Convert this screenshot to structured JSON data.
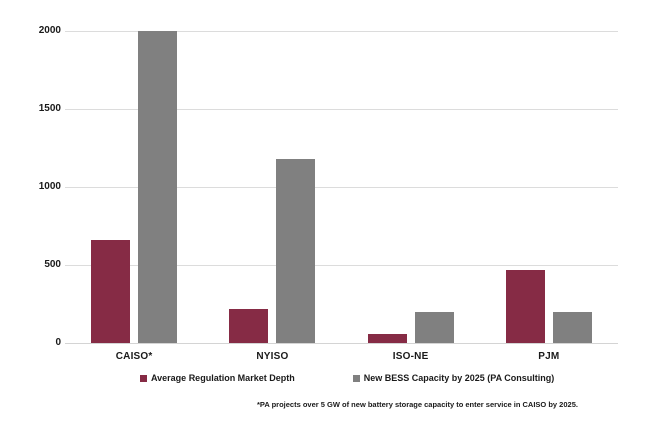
{
  "chart_data": {
    "type": "bar",
    "categories": [
      "CAISO*",
      "NYISO",
      "ISO-NE",
      "PJM"
    ],
    "series": [
      {
        "name": "Average Regulation Market Depth",
        "color": "#862B45",
        "values": [
          660,
          220,
          60,
          470
        ]
      },
      {
        "name": "New BESS Capacity by 2025 (PA Consulting)",
        "color": "#808080",
        "values": [
          2000,
          1180,
          200,
          200
        ]
      }
    ],
    "title": "",
    "xlabel": "",
    "ylabel": "",
    "ylim": [
      0,
      2000
    ],
    "yticks": [
      0,
      500,
      1000,
      1500,
      2000
    ],
    "grid": "horizontal",
    "legend_position": "bottom"
  },
  "footnote": "*PA projects over 5 GW of new battery storage capacity to enter service in CAISO by 2025.",
  "colors": {
    "series1": "#862B45",
    "series2": "#808080",
    "gridline": "#dcdcdc",
    "text": "#1a1a1a",
    "background": "#ffffff"
  }
}
